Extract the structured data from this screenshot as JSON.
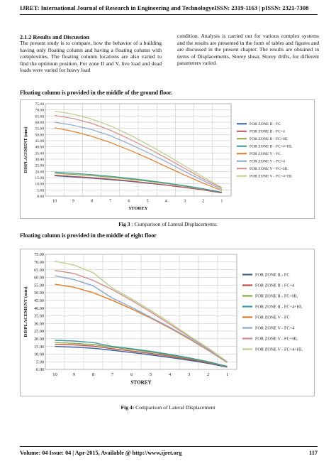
{
  "header": {
    "journal": "IJRET: International Journal of Research in Engineering and TechnologyeISSN: 2319-1163 | pISSN: 2321-7308"
  },
  "section": {
    "title": "2.1.2 Results and Discussion",
    "left_text": "The present study is to compare, how the behavior of a building having only floating column and having a floating column with complexities. The floating column locations are also varied to find the optimum position. For zone II and V, live load and dead loads were varied for heavy load",
    "right_text": "condition. Analysis is carried out for various complex systems and the results are presented in the form of tables and figures and are discussed in the present chapter. The results are obtained in terms of Displacements, Storey shear, Storey drifts, for different parameters varied."
  },
  "figures": [
    {
      "heading": "Floating column is provided in the middle of the ground floor.",
      "caption_label": "Fig 3",
      "caption_text": " : Comparison of Lateral Displacements."
    },
    {
      "heading": "Floating column is provided in the middle of eight floor",
      "caption_label": "Fig 4:",
      "caption_text": " Comparison of Lateral Displacement"
    }
  ],
  "colors": {
    "zone2_fc": "#3a5f9a",
    "zone2_fc4": "#c0504d",
    "zone2_fchl": "#8aa84a",
    "zone2_fc4hl": "#3a9a9f",
    "zone5_fc": "#e07a2a",
    "zone5_fc4": "#8ea6d4",
    "zone5_fchl": "#d88a8a",
    "zone5_fc4hl": "#b8d08a"
  },
  "chart_data": [
    {
      "type": "line",
      "title": "",
      "xlabel": "STOREY",
      "ylabel": "DISPLACEMENT (mm)",
      "categories": [
        "10",
        "9",
        "8",
        "7",
        "6",
        "5",
        "4",
        "3",
        "2",
        "1"
      ],
      "ylim": [
        0,
        75
      ],
      "yticks": [
        "0.00",
        "5.00",
        "10.00",
        "15.00",
        "20.00",
        "25.00",
        "30.00",
        "35.00",
        "40.00",
        "45.00",
        "50.00",
        "55.00",
        "60.00",
        "65.00",
        "70.00",
        "75.00"
      ],
      "grid": true,
      "legend": "right",
      "series": [
        {
          "name": "FOR ZONE II -   FC",
          "color": "#3a5f9a",
          "values": [
            16.5,
            15.5,
            14.5,
            13.3,
            12.0,
            10.5,
            8.8,
            7.0,
            5.0,
            2.5
          ]
        },
        {
          "name": "FOR ZONE II -   FC+4",
          "color": "#c0504d",
          "values": [
            17.0,
            16.0,
            15.0,
            13.8,
            12.4,
            10.8,
            9.0,
            7.1,
            5.1,
            2.6
          ]
        },
        {
          "name": "FOR ZONE II -   FC+HL",
          "color": "#8aa84a",
          "values": [
            18.5,
            17.6,
            16.6,
            15.3,
            13.8,
            12.1,
            10.2,
            8.0,
            5.8,
            3.0
          ]
        },
        {
          "name": "FOR ZONE II -   FC+4+HL",
          "color": "#3a9a9f",
          "values": [
            19.5,
            18.5,
            17.4,
            16.1,
            14.5,
            12.7,
            10.7,
            8.4,
            6.0,
            3.1
          ]
        },
        {
          "name": "FOR ZONE V -    FC",
          "color": "#e07a2a",
          "values": [
            55.5,
            52.5,
            48.5,
            43.5,
            37.5,
            31.0,
            24.0,
            17.0,
            10.5,
            4.5
          ]
        },
        {
          "name": "FOR ZONE V -    FC+4",
          "color": "#8ea6d4",
          "values": [
            60.0,
            57.5,
            54.0,
            49.0,
            42.5,
            35.5,
            28.0,
            20.0,
            12.5,
            5.5
          ]
        },
        {
          "name": "FOR ZONE V -    FC+HL",
          "color": "#d88a8a",
          "values": [
            65.5,
            63.0,
            59.0,
            53.5,
            46.5,
            39.0,
            31.0,
            22.5,
            14.0,
            6.5
          ]
        },
        {
          "name": "FOR ZONE V -    FC+4+HL",
          "color": "#b8d08a",
          "values": [
            69.0,
            66.5,
            62.5,
            57.0,
            50.0,
            42.0,
            33.5,
            24.5,
            15.5,
            7.0
          ]
        }
      ]
    },
    {
      "type": "line",
      "title": "",
      "xlabel": "STOREY",
      "ylabel": "DISPLACEMENT (mm)",
      "categories": [
        "10",
        "9",
        "8",
        "7",
        "6",
        "5",
        "4",
        "3",
        "2",
        "1"
      ],
      "ylim": [
        0,
        75
      ],
      "yticks": [
        "0.00",
        "5.00",
        "10.00",
        "15.00",
        "20.00",
        "25.00",
        "30.00",
        "35.00",
        "40.00",
        "45.00",
        "50.00",
        "55.00",
        "60.00",
        "65.00",
        "70.00",
        "75.00"
      ],
      "grid": true,
      "legend": "right",
      "series": [
        {
          "name": "FOR ZONE II -   FC",
          "color": "#3a5f9a",
          "values": [
            15.0,
            14.5,
            13.8,
            12.5,
            11.0,
            9.5,
            7.8,
            6.0,
            4.0,
            1.5
          ]
        },
        {
          "name": "FOR ZONE II -   FC+4",
          "color": "#c0504d",
          "values": [
            16.5,
            16.0,
            15.2,
            13.5,
            12.0,
            10.4,
            8.6,
            6.6,
            4.4,
            1.7
          ]
        },
        {
          "name": "FOR ZONE II -   FC+HL",
          "color": "#8aa84a",
          "values": [
            17.5,
            17.0,
            16.2,
            14.5,
            13.0,
            11.3,
            9.3,
            7.2,
            4.8,
            1.9
          ]
        },
        {
          "name": "FOR ZONE II -   FC+4+HL",
          "color": "#3a9a9f",
          "values": [
            19.0,
            18.5,
            17.5,
            15.0,
            13.5,
            11.8,
            9.8,
            7.6,
            5.1,
            2.0
          ]
        },
        {
          "name": "FOR ZONE V -    FC",
          "color": "#e07a2a",
          "values": [
            55.5,
            53.5,
            50.0,
            45.0,
            39.5,
            33.5,
            27.0,
            20.0,
            12.5,
            4.5
          ]
        },
        {
          "name": "FOR ZONE V -    FC+4",
          "color": "#8ea6d4",
          "values": [
            61.0,
            58.5,
            54.5,
            46.5,
            40.5,
            34.0,
            27.5,
            20.5,
            12.8,
            4.7
          ]
        },
        {
          "name": "FOR ZONE V -    FC+HL",
          "color": "#d88a8a",
          "values": [
            64.5,
            62.5,
            58.0,
            52.0,
            45.0,
            37.5,
            29.5,
            21.5,
            13.5,
            5.0
          ]
        },
        {
          "name": "FOR ZONE V -    FC+4+HL",
          "color": "#b8d08a",
          "values": [
            70.5,
            68.0,
            63.0,
            53.0,
            46.0,
            38.5,
            30.5,
            22.0,
            14.0,
            5.2
          ]
        }
      ]
    }
  ],
  "footer": {
    "text": "Volume: 04 Issue: 04 | Apr-2015, Available @ http://www.ijret.org",
    "page": "117"
  }
}
